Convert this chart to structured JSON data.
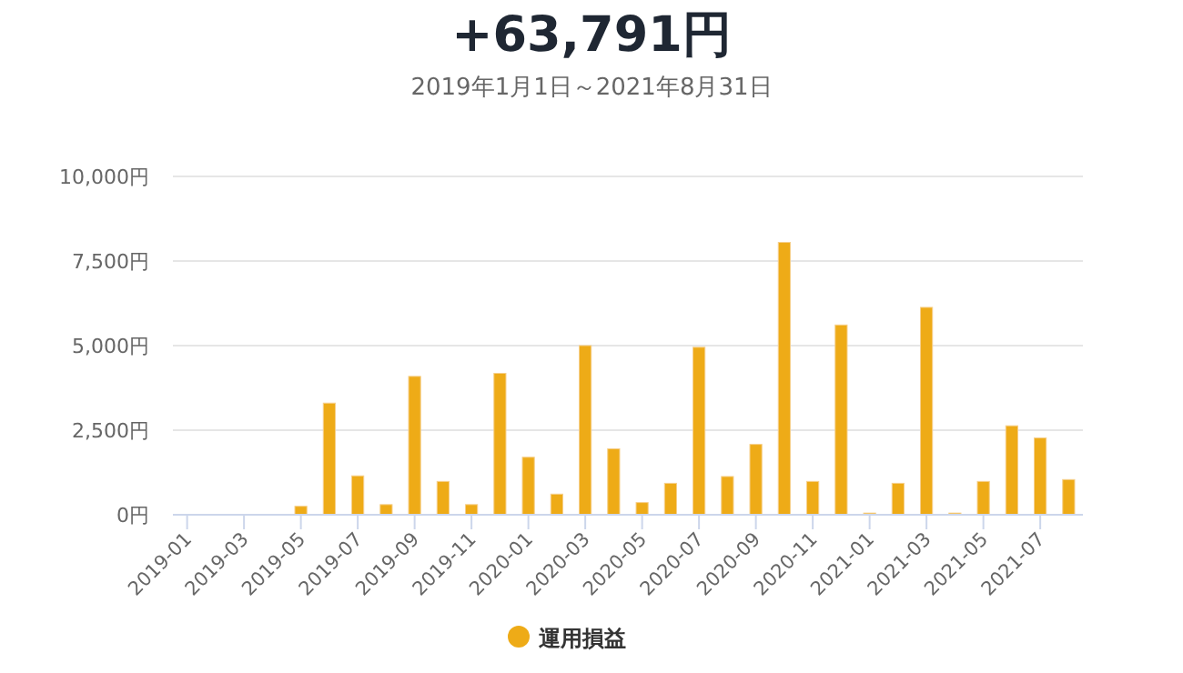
{
  "chart_data": {
    "type": "bar",
    "title": "+63,791円",
    "subtitle": "2019年1月1日～2021年8月31日",
    "categories": [
      "2019-01",
      null,
      "2019-03",
      null,
      "2019-05",
      null,
      "2019-07",
      null,
      "2019-09",
      null,
      "2019-11",
      null,
      "2020-01",
      null,
      "2020-03",
      null,
      "2020-05",
      null,
      "2020-07",
      null,
      "2020-09",
      null,
      "2020-11",
      null,
      "2021-01",
      null,
      "2021-03",
      null,
      "2021-05",
      null,
      "2021-07",
      null
    ],
    "series": [
      {
        "name": "運用損益",
        "color": "#eeab17",
        "values": [
          0,
          0,
          0,
          0,
          250,
          3300,
          1150,
          300,
          4090,
          985,
          300,
          4180,
          1700,
          610,
          5000,
          1950,
          360,
          930,
          4950,
          1130,
          2080,
          8050,
          985,
          5610,
          50,
          930,
          6130,
          50,
          985,
          2630,
          2270,
          1040
        ]
      }
    ],
    "ylim": [
      0,
      10000
    ],
    "yticks": [
      {
        "value": 0,
        "label": "0円"
      },
      {
        "value": 2500,
        "label": "2,500円"
      },
      {
        "value": 5000,
        "label": "5,000円"
      },
      {
        "value": 7500,
        "label": "7,500円"
      },
      {
        "value": 10000,
        "label": "10,000円"
      }
    ],
    "grid": "y",
    "legend": "bottom",
    "marker": "circle"
  }
}
